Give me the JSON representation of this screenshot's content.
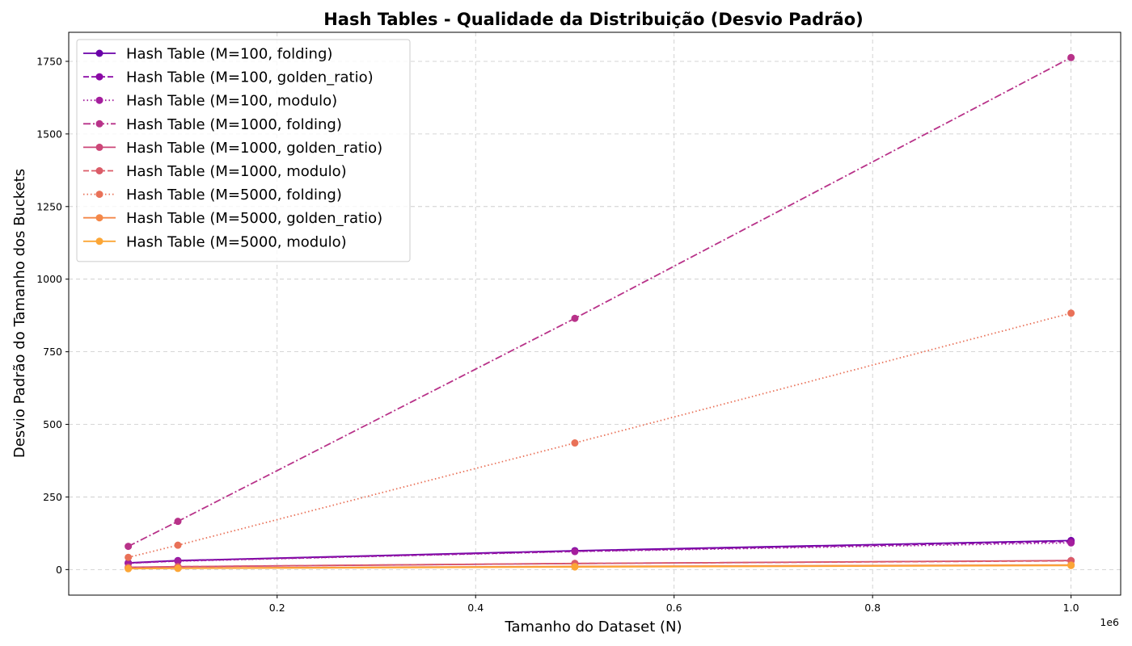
{
  "chart_data": {
    "type": "line",
    "title": "Hash Tables - Qualidade da Distribuição (Desvio Padrão)",
    "xlabel": "Tamanho do Dataset (N)",
    "ylabel": "Desvio Padrão do Tamanho dos Buckets",
    "x_offset_label": "1e6",
    "x": [
      50000,
      100000,
      500000,
      1000000
    ],
    "xlim": [
      -10000,
      1050000
    ],
    "ylim": [
      -88,
      1850
    ],
    "x_ticks": [
      200000,
      400000,
      600000,
      800000,
      1000000
    ],
    "x_tick_labels": [
      "0.2",
      "0.4",
      "0.6",
      "0.8",
      "1.0"
    ],
    "y_ticks": [
      0,
      250,
      500,
      750,
      1000,
      1250,
      1500,
      1750
    ],
    "y_tick_labels": [
      "0",
      "250",
      "500",
      "750",
      "1000",
      "1250",
      "1500",
      "1750"
    ],
    "grid": true,
    "legend_position": "top-left",
    "series": [
      {
        "name": "Hash Table (M=100, folding)",
        "values": [
          23,
          31,
          65,
          100
        ],
        "color": "#6a00a8",
        "dash": "solid"
      },
      {
        "name": "Hash Table (M=100, golden_ratio)",
        "values": [
          22,
          30,
          63,
          97
        ],
        "color": "#8a09a5",
        "dash": "dashed"
      },
      {
        "name": "Hash Table (M=100, modulo)",
        "values": [
          22,
          29,
          62,
          92
        ],
        "color": "#a41e9d",
        "dash": "dotted"
      },
      {
        "name": "Hash Table (M=1000, folding)",
        "values": [
          80,
          166,
          865,
          1763
        ],
        "color": "#b83289",
        "dash": "dashdot"
      },
      {
        "name": "Hash Table (M=1000, golden_ratio)",
        "values": [
          8,
          10,
          21,
          31
        ],
        "color": "#cc4778",
        "dash": "solid"
      },
      {
        "name": "Hash Table (M=1000, modulo)",
        "values": [
          7,
          10,
          21,
          30
        ],
        "color": "#db5c68",
        "dash": "dashed"
      },
      {
        "name": "Hash Table (M=5000, folding)",
        "values": [
          42,
          84,
          436,
          883
        ],
        "color": "#e97158",
        "dash": "dotted"
      },
      {
        "name": "Hash Table (M=5000, golden_ratio)",
        "values": [
          4,
          5,
          11,
          16
        ],
        "color": "#f48849",
        "dash": "solid"
      },
      {
        "name": "Hash Table (M=5000, modulo)",
        "values": [
          3,
          4,
          9,
          14
        ],
        "color": "#fca636",
        "dash": "solid"
      }
    ]
  }
}
